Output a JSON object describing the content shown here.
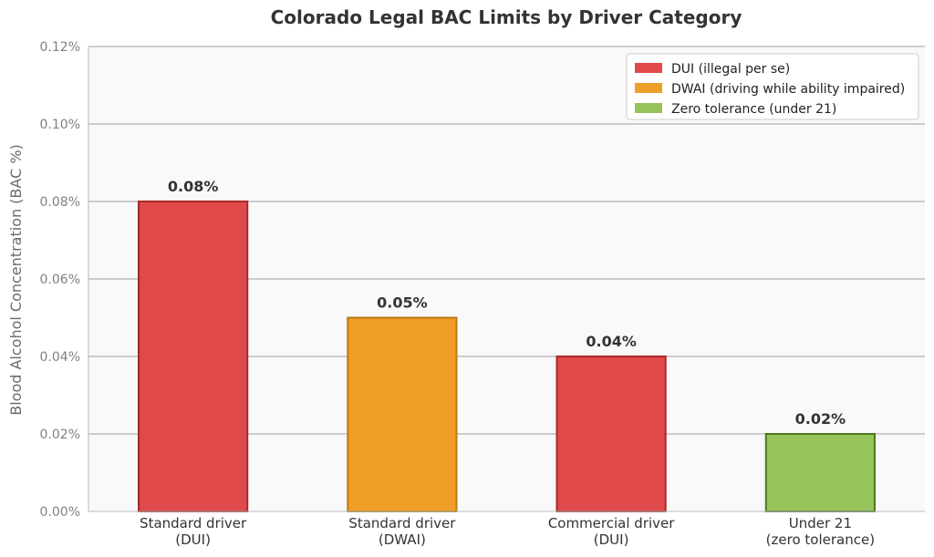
{
  "chart_data": {
    "type": "bar",
    "title": "Colorado Legal BAC Limits by Driver Category",
    "xlabel": "",
    "ylabel": "Blood Alcohol Concentration (BAC %)",
    "ylim": [
      0,
      0.12
    ],
    "yticks": [
      0,
      0.02,
      0.04,
      0.06,
      0.08,
      0.1,
      0.12
    ],
    "ytick_labels": [
      "0.00%",
      "0.02%",
      "0.04%",
      "0.06%",
      "0.08%",
      "0.10%",
      "0.12%"
    ],
    "grid": "horizontal",
    "legend_position": "top-right",
    "categories": [
      [
        "Standard driver",
        "(DUI)"
      ],
      [
        "Standard driver",
        "(DWAI)"
      ],
      [
        "Commercial driver",
        "(DUI)"
      ],
      [
        "Under 21",
        "(zero tolerance)"
      ]
    ],
    "values": [
      0.08,
      0.05,
      0.04,
      0.02
    ],
    "data_labels": [
      "0.08%",
      "0.05%",
      "0.04%",
      "0.02%"
    ],
    "bar_types": [
      "dui",
      "dwai",
      "dui",
      "zero"
    ],
    "legend": [
      {
        "key": "dui",
        "label": "DUI (illegal per se)",
        "color": "#e14a4a",
        "edge": "#a82828"
      },
      {
        "key": "dwai",
        "label": "DWAI (driving while ability impaired)",
        "color": "#ef9e28",
        "edge": "#b97a12"
      },
      {
        "key": "zero",
        "label": "Zero tolerance (under 21)",
        "color": "#96c35a",
        "edge": "#4a7a1e"
      }
    ]
  }
}
